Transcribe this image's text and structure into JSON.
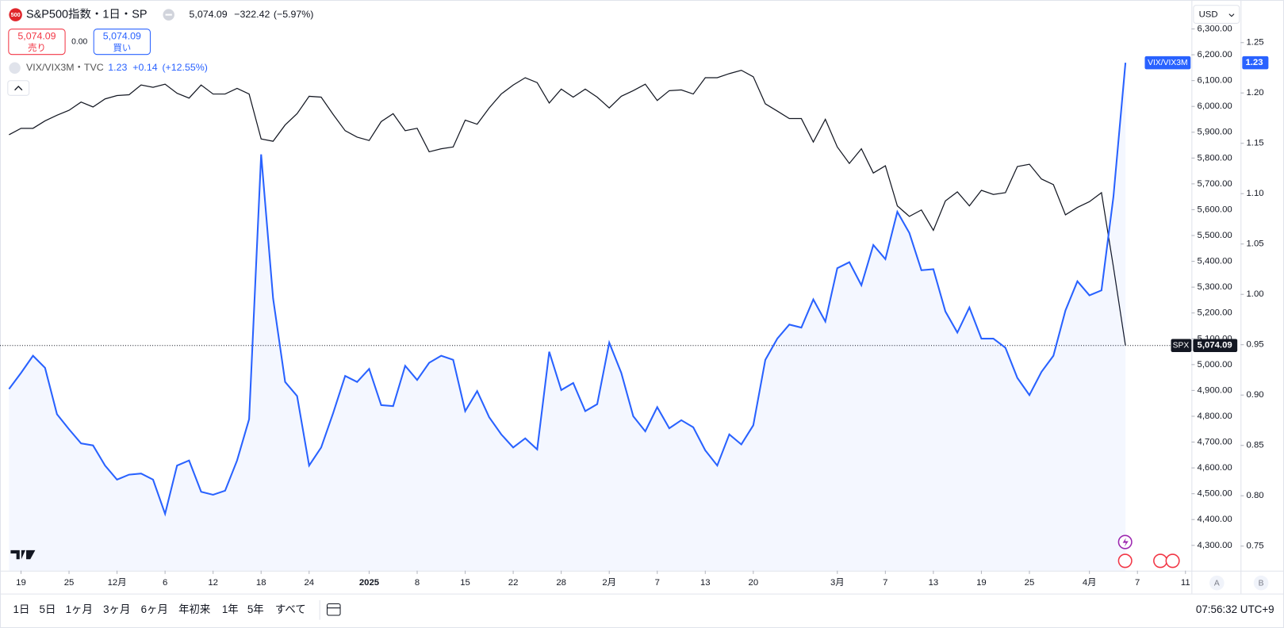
{
  "header": {
    "badge": "500",
    "symbol": "S&P500指数・1日・SP",
    "price": "5,074.09",
    "change": "−322.42",
    "change_pct": "(−5.97%)",
    "sell_price": "5,074.09",
    "sell": "売り",
    "spread": "0.00",
    "buy_price": "5,074.09",
    "buy": "買い",
    "compare": "VIX/VIX3M・TVC",
    "compare_price": "1.23",
    "compare_change": "+0.14",
    "compare_pct": "(+12.55%)",
    "currency": "USD"
  },
  "toolbar": {
    "ranges": [
      "1日",
      "5日",
      "1ヶ月",
      "3ヶ月",
      "6ヶ月",
      "年初来",
      "1年",
      "5年",
      "すべて"
    ],
    "time": "07:56:32 UTC+9",
    "scale_buttons": [
      "A",
      "B"
    ]
  },
  "chart_data": {
    "type": "line",
    "xlim": [
      -0.75,
      98.5
    ],
    "xticks": [
      {
        "value": 1,
        "label": "19"
      },
      {
        "value": 5,
        "label": "25"
      },
      {
        "value": 9,
        "label": "12月"
      },
      {
        "value": 13,
        "label": "6"
      },
      {
        "value": 17,
        "label": "12"
      },
      {
        "value": 21,
        "label": "18"
      },
      {
        "value": 25,
        "label": "24"
      },
      {
        "value": 30,
        "label": "2025"
      },
      {
        "value": 34,
        "label": "8"
      },
      {
        "value": 38,
        "label": "15"
      },
      {
        "value": 42,
        "label": "22"
      },
      {
        "value": 46,
        "label": "28"
      },
      {
        "value": 50,
        "label": "2月"
      },
      {
        "value": 54,
        "label": "7"
      },
      {
        "value": 58,
        "label": "13"
      },
      {
        "value": 62,
        "label": "20"
      },
      {
        "value": 69,
        "label": "3月"
      },
      {
        "value": 73,
        "label": "7"
      },
      {
        "value": 77,
        "label": "13"
      },
      {
        "value": 81,
        "label": "19"
      },
      {
        "value": 85,
        "label": "25"
      },
      {
        "value": 90,
        "label": "4月"
      },
      {
        "value": 94,
        "label": "7"
      },
      {
        "value": 98,
        "label": "11"
      }
    ],
    "ylim": [
      4202,
      6412
    ],
    "yticks": [
      {
        "value": 4300,
        "label": "4,300.00"
      },
      {
        "value": 4400,
        "label": "4,400.00"
      },
      {
        "value": 4500,
        "label": "4,500.00"
      },
      {
        "value": 4600,
        "label": "4,600.00"
      },
      {
        "value": 4700,
        "label": "4,700.00"
      },
      {
        "value": 4800,
        "label": "4,800.00"
      },
      {
        "value": 4900,
        "label": "4,900.00"
      },
      {
        "value": 5000,
        "label": "5,000.00"
      },
      {
        "value": 5100,
        "label": "5,100.00"
      },
      {
        "value": 5200,
        "label": "5,200.00"
      },
      {
        "value": 5300,
        "label": "5,300.00"
      },
      {
        "value": 5400,
        "label": "5,400.00"
      },
      {
        "value": 5500,
        "label": "5,500.00"
      },
      {
        "value": 5600,
        "label": "5,600.00"
      },
      {
        "value": 5700,
        "label": "5,700.00"
      },
      {
        "value": 5800,
        "label": "5,800.00"
      },
      {
        "value": 5900,
        "label": "5,900.00"
      },
      {
        "value": 6000,
        "label": "6,000.00"
      },
      {
        "value": 6100,
        "label": "6,100.00"
      },
      {
        "value": 6200,
        "label": "6,200.00"
      },
      {
        "value": 6300,
        "label": "6,300.00"
      }
    ],
    "y2lim": [
      0.7256,
      1.2923
    ],
    "y2ticks": [
      0.75,
      {
        "value": 0.8,
        "label": "0.80"
      },
      0.85,
      {
        "value": 0.9,
        "label": "0.90"
      },
      0.95,
      {
        "value": 1.0,
        "label": "1.00"
      },
      1.05,
      {
        "value": 1.1,
        "label": "1.10"
      },
      1.15,
      {
        "value": 1.2,
        "label": "1.20"
      },
      1.25
    ],
    "series": [
      {
        "name": "SPX",
        "color": "#131722",
        "price_tag": "5,074.09",
        "values": [
          5890,
          5915,
          5915,
          5944,
          5966,
          5985,
          6017,
          5998,
          6029,
          6042,
          6045,
          6083,
          6074,
          6086,
          6051,
          6032,
          6083,
          6048,
          6048,
          6070,
          6048,
          5874,
          5865,
          5928,
          5972,
          6039,
          6036,
          5969,
          5906,
          5881,
          5868,
          5941,
          5972,
          5906,
          5915,
          5824,
          5836,
          5843,
          5947,
          5931,
          5994,
          6048,
          6083,
          6111,
          6092,
          6013,
          6067,
          6036,
          6067,
          6036,
          5994,
          6039,
          6061,
          6086,
          6023,
          6061,
          6064,
          6048,
          6111,
          6111,
          6127,
          6140,
          6115,
          6010,
          5982,
          5953,
          5953,
          5862,
          5950,
          5843,
          5779,
          5836,
          5742,
          5770,
          5615,
          5574,
          5599,
          5520,
          5634,
          5669,
          5615,
          5675,
          5659,
          5666,
          5767,
          5776,
          5719,
          5697,
          5580,
          5609,
          5631,
          5666,
          5378,
          5074.09
        ]
      },
      {
        "name": "VIX/VIX3M",
        "color": "#2962ff",
        "axis": "y2",
        "area": true,
        "values": [
          0.906,
          0.922,
          0.939,
          0.927,
          0.881,
          0.866,
          0.852,
          0.85,
          0.83,
          0.816,
          0.821,
          0.822,
          0.816,
          0.782,
          0.83,
          0.835,
          0.804,
          0.801,
          0.805,
          0.835,
          0.876,
          1.139,
          0.996,
          0.913,
          0.899,
          0.83,
          0.848,
          0.882,
          0.919,
          0.913,
          0.926,
          0.89,
          0.889,
          0.929,
          0.915,
          0.932,
          0.939,
          0.935,
          0.884,
          0.904,
          0.878,
          0.861,
          0.848,
          0.857,
          0.846,
          0.943,
          0.905,
          0.912,
          0.884,
          0.891,
          0.952,
          0.922,
          0.879,
          0.864,
          0.888,
          0.867,
          0.875,
          0.868,
          0.845,
          0.83,
          0.861,
          0.851,
          0.87,
          0.935,
          0.956,
          0.97,
          0.967,
          0.995,
          0.973,
          1.026,
          1.032,
          1.009,
          1.049,
          1.035,
          1.082,
          1.061,
          1.024,
          1.025,
          0.983,
          0.962,
          0.987,
          0.956,
          0.956,
          0.947,
          0.917,
          0.9,
          0.923,
          0.939,
          0.984,
          1.013,
          0.999,
          1.004,
          1.097,
          1.23
        ]
      }
    ]
  }
}
